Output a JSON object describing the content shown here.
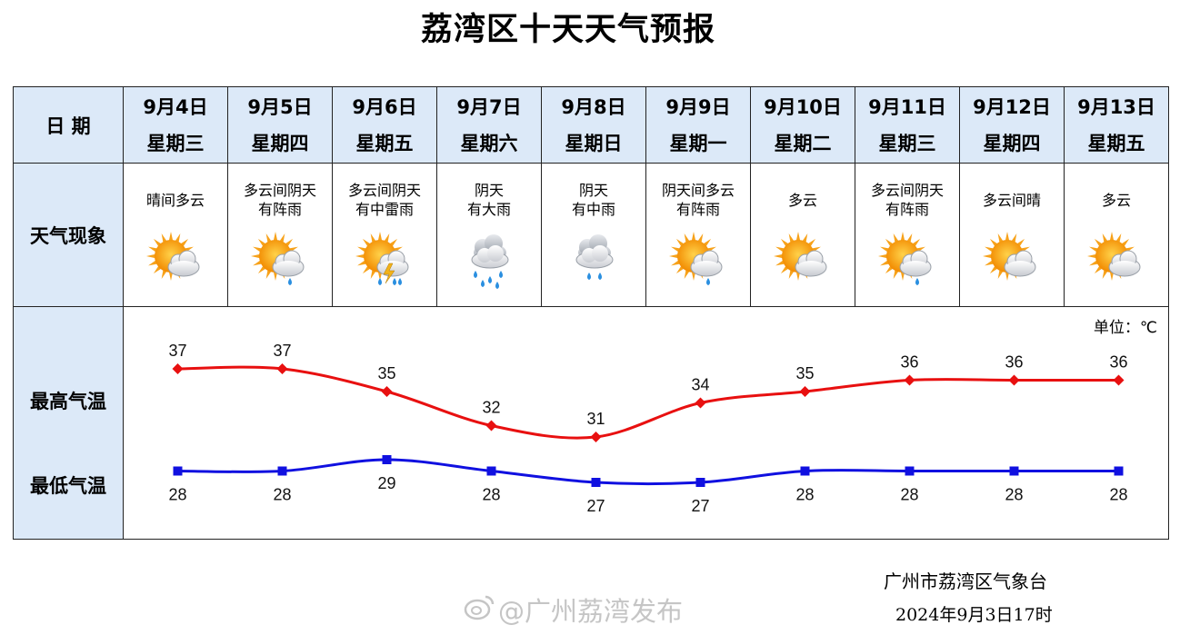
{
  "title": "荔湾区十天天气预报",
  "labels": {
    "date": "日  期",
    "weather": "天气现象",
    "high": "最高气温",
    "low": "最低气温",
    "unit": "单位：℃"
  },
  "days": [
    {
      "date": "9月4日",
      "weekday": "星期三",
      "weather": [
        "晴间多云"
      ],
      "icon": "sun-cloud-icon"
    },
    {
      "date": "9月5日",
      "weekday": "星期四",
      "weather": [
        "多云间阴天",
        "有阵雨"
      ],
      "icon": "sun-cloud-rain-icon"
    },
    {
      "date": "9月6日",
      "weekday": "星期五",
      "weather": [
        "多云间阴天",
        "有中雷雨"
      ],
      "icon": "sun-cloud-thunder-icon"
    },
    {
      "date": "9月7日",
      "weekday": "星期六",
      "weather": [
        "阴天",
        "有大雨"
      ],
      "icon": "cloud-heavy-rain-icon"
    },
    {
      "date": "9月8日",
      "weekday": "星期日",
      "weather": [
        "阴天",
        "有中雨"
      ],
      "icon": "cloud-rain-icon"
    },
    {
      "date": "9月9日",
      "weekday": "星期一",
      "weather": [
        "阴天间多云",
        "有阵雨"
      ],
      "icon": "sun-cloud-rain-icon"
    },
    {
      "date": "9月10日",
      "weekday": "星期二",
      "weather": [
        "多云"
      ],
      "icon": "sun-cloud-icon"
    },
    {
      "date": "9月11日",
      "weekday": "星期三",
      "weather": [
        "多云间阴天",
        "有阵雨"
      ],
      "icon": "sun-cloud-rain-icon"
    },
    {
      "date": "9月12日",
      "weekday": "星期四",
      "weather": [
        "多云间晴"
      ],
      "icon": "sun-cloud-icon"
    },
    {
      "date": "9月13日",
      "weekday": "星期五",
      "weather": [
        "多云"
      ],
      "icon": "sun-cloud-icon"
    }
  ],
  "chart_data": {
    "type": "line",
    "categories": [
      "9月4日",
      "9月5日",
      "9月6日",
      "9月7日",
      "9月8日",
      "9月9日",
      "9月10日",
      "9月11日",
      "9月12日",
      "9月13日"
    ],
    "series": [
      {
        "name": "最高气温",
        "values": [
          37,
          37,
          35,
          32,
          31,
          34,
          35,
          36,
          36,
          36
        ],
        "color": "#e81010",
        "marker": "diamond"
      },
      {
        "name": "最低气温",
        "values": [
          28,
          28,
          29,
          28,
          27,
          27,
          28,
          28,
          28,
          28
        ],
        "color": "#1010e0",
        "marker": "square"
      }
    ],
    "unit": "℃",
    "grid": false
  },
  "footer": {
    "org": "广州市荔湾区气象台",
    "time": "2024年9月3日17时"
  },
  "watermark": "@广州荔湾发布"
}
